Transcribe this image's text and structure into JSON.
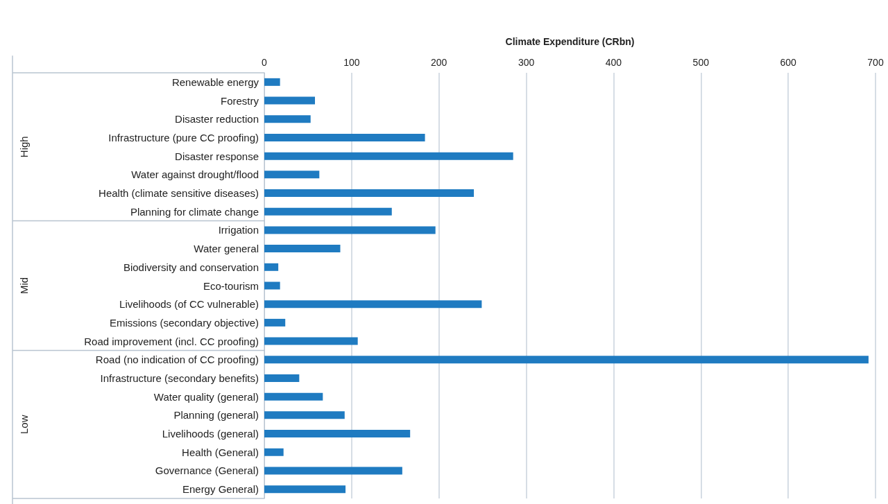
{
  "chart_data": {
    "type": "bar",
    "orientation": "horizontal",
    "xlabel": "Climate Expenditure (CRbn)",
    "categories": [
      "Renewable energy",
      "Forestry",
      "Disaster reduction",
      "Infrastructure (pure CC proofing)",
      "Disaster response",
      "Water against drought/flood",
      "Health (climate sensitive diseases)",
      "Planning for climate change",
      "Irrigation",
      "Water general",
      "Biodiversity and conservation",
      "Eco-tourism",
      "Livelihoods (of CC vulnerable)",
      "Emissions (secondary objective)",
      "Road improvement (incl. CC proofing)",
      "Road (no indication of CC proofing)",
      "Infrastructure (secondary benefits)",
      "Water quality (general)",
      "Planning (general)",
      "Livelihoods (general)",
      "Health (General)",
      "Governance (General)",
      "Energy General)"
    ],
    "values": [
      18,
      58,
      53,
      184,
      285,
      63,
      240,
      146,
      196,
      87,
      16,
      18,
      249,
      24,
      107,
      692,
      40,
      67,
      92,
      167,
      22,
      158,
      93
    ],
    "color": "#1f7bc1",
    "xlim": [
      0,
      700
    ],
    "xticks": [
      0,
      100,
      200,
      300,
      400,
      500,
      600,
      700
    ],
    "grid": "x",
    "annotations": [
      "High",
      "Mid",
      "Low"
    ]
  }
}
